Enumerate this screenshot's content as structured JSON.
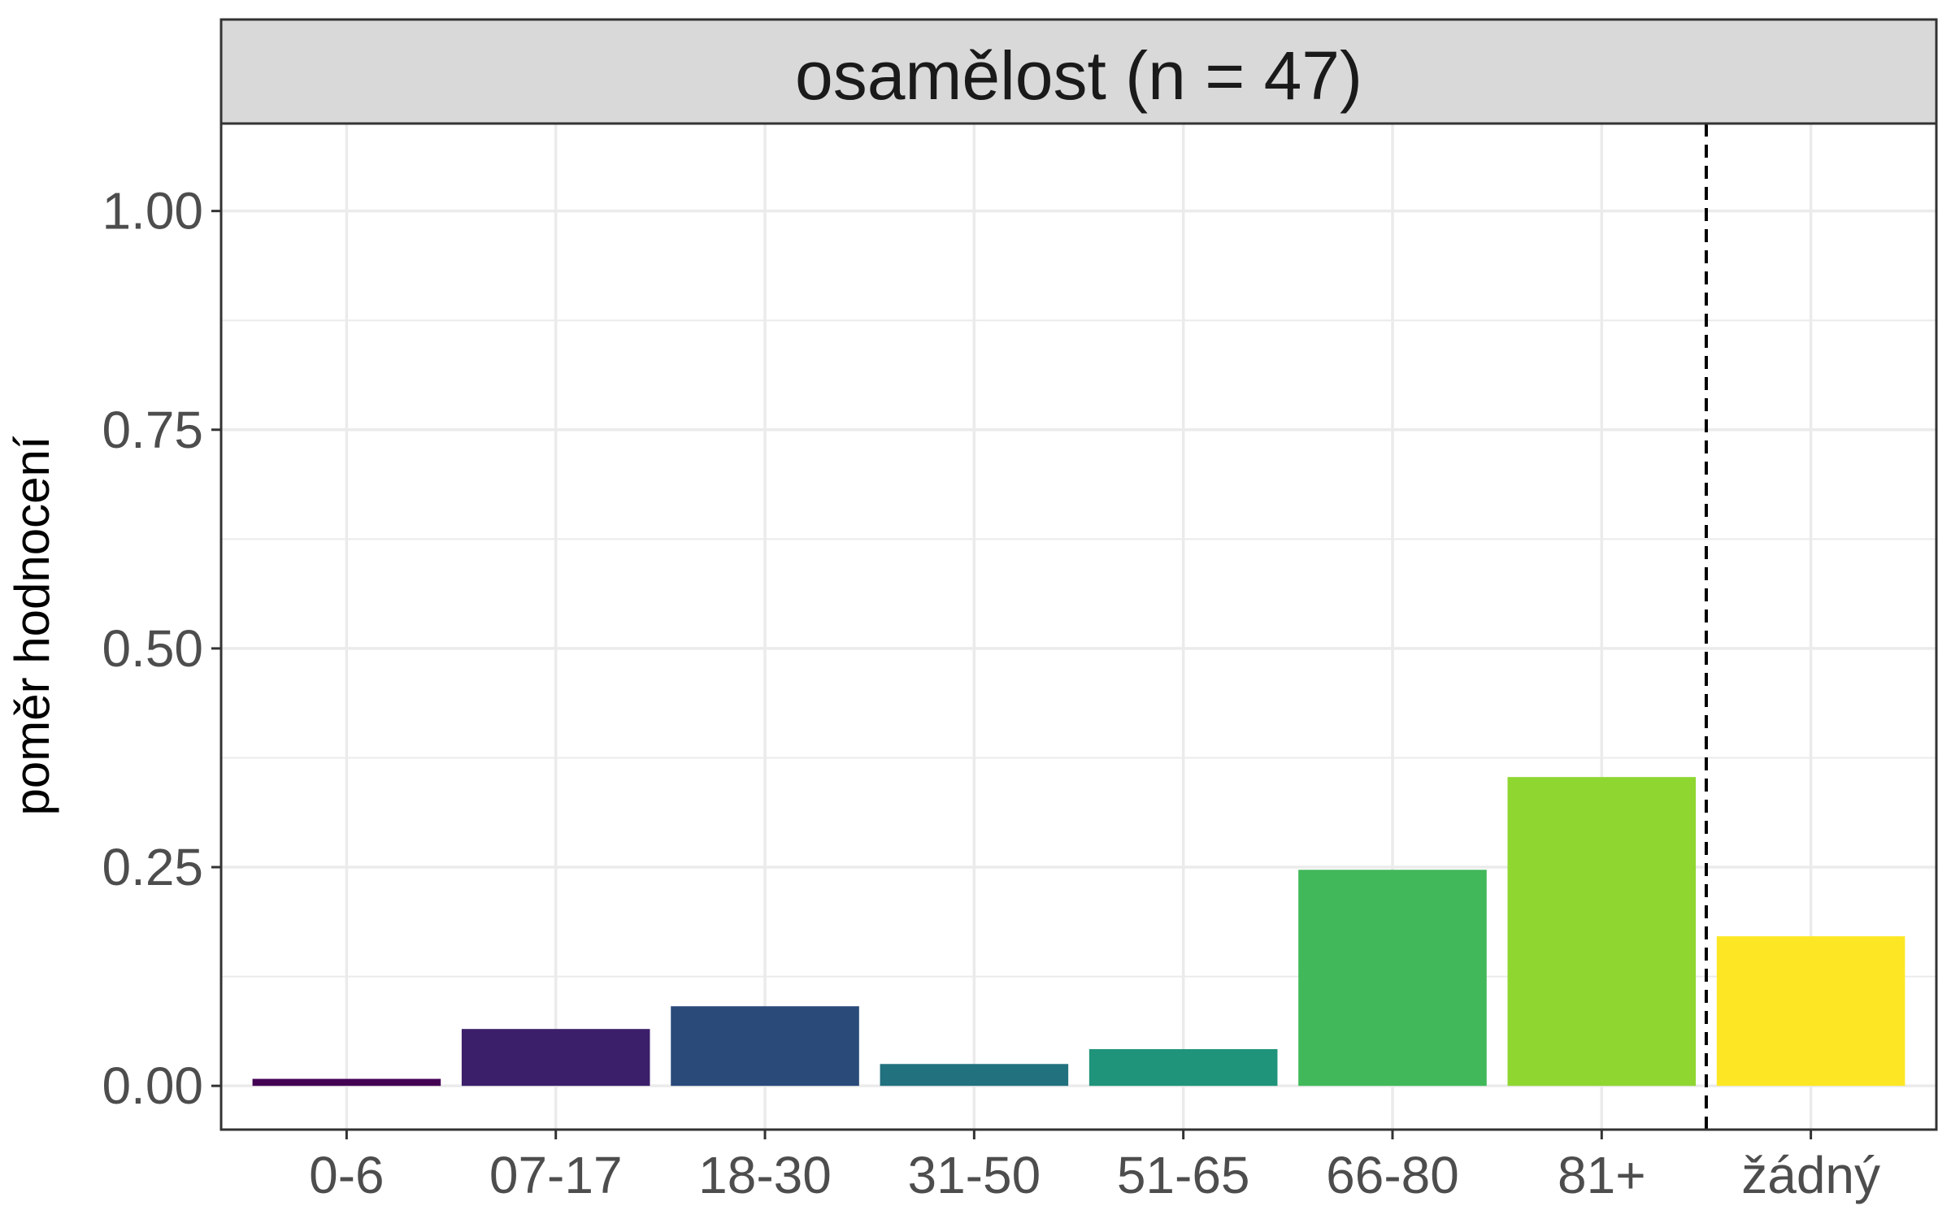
{
  "chart_data": {
    "type": "bar",
    "facet_title": "osamělost (n = 47)",
    "ylabel": "poměr hodnocení",
    "xlabel": "",
    "categories": [
      "0-6",
      "07-17",
      "18-30",
      "31-50",
      "51-65",
      "66-80",
      "81+",
      "žádný"
    ],
    "values": [
      0.008,
      0.065,
      0.091,
      0.025,
      0.042,
      0.247,
      0.353,
      0.171
    ],
    "colors": [
      "#440154",
      "#3B1F6A",
      "#2A4B79",
      "#22717F",
      "#1F947A",
      "#41B85A",
      "#8FD631",
      "#FDE725"
    ],
    "ylim": [
      -0.05,
      1.1
    ],
    "yticks": [
      0.0,
      0.25,
      0.5,
      0.75,
      1.0
    ],
    "ytick_labels": [
      "0.00",
      "0.25",
      "0.50",
      "0.75",
      "1.00"
    ],
    "reference_line": {
      "style": "dashed",
      "between": [
        "81+",
        "žádný"
      ]
    },
    "grid": true,
    "legend": "none"
  }
}
